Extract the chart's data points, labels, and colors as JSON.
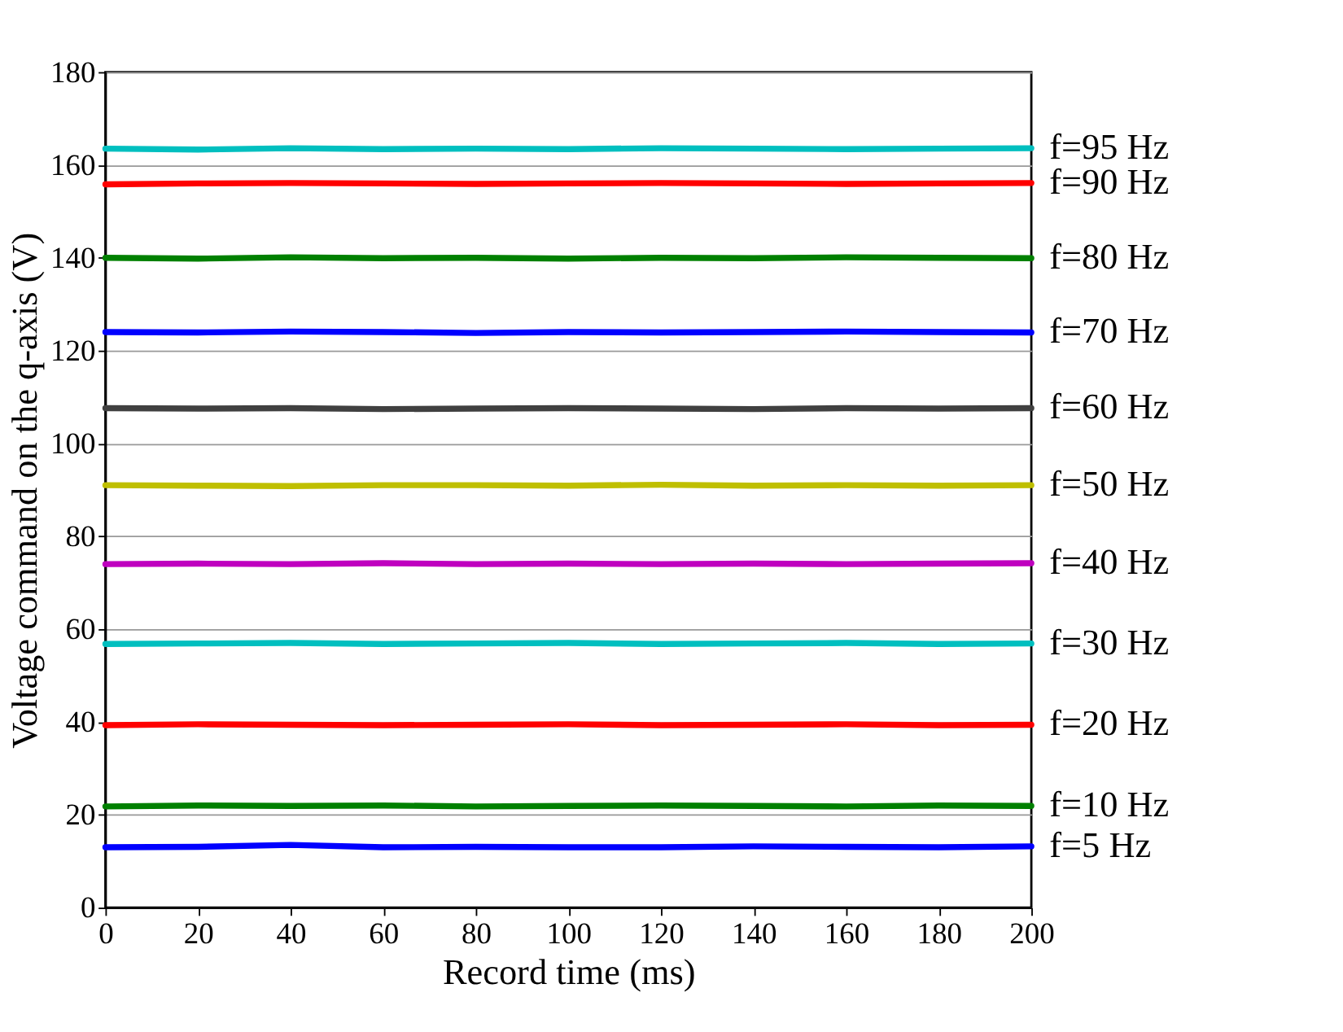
{
  "chart_data": {
    "type": "line",
    "xlabel": "Record time (ms)",
    "ylabel": "Voltage command on the q-axis (V)",
    "xlim": [
      0,
      200
    ],
    "ylim": [
      0,
      180
    ],
    "xticks": [
      0,
      20,
      40,
      60,
      80,
      100,
      120,
      140,
      160,
      180,
      200
    ],
    "yticks": [
      0,
      20,
      40,
      60,
      80,
      100,
      120,
      140,
      160,
      180
    ],
    "grid": "y",
    "legend": false,
    "marker": "none",
    "line_style": "solid",
    "x": [
      0,
      20,
      40,
      60,
      80,
      100,
      120,
      140,
      160,
      180,
      200
    ],
    "series": [
      {
        "name": "f=95 Hz",
        "color": "#00bfbf",
        "values": [
          163.5,
          163.3,
          163.6,
          163.4,
          163.5,
          163.4,
          163.6,
          163.5,
          163.4,
          163.5,
          163.6
        ]
      },
      {
        "name": "f=90 Hz",
        "color": "#ff0000",
        "values": [
          155.8,
          156.0,
          156.1,
          156.0,
          155.9,
          156.0,
          156.1,
          156.0,
          155.9,
          156.0,
          156.1
        ]
      },
      {
        "name": "f=80 Hz",
        "color": "#008000",
        "values": [
          140.0,
          139.8,
          140.1,
          139.9,
          140.0,
          139.8,
          140.0,
          139.9,
          140.1,
          140.0,
          139.9
        ]
      },
      {
        "name": "f=70 Hz",
        "color": "#0000ff",
        "values": [
          124.0,
          123.9,
          124.1,
          124.0,
          123.8,
          124.0,
          123.9,
          124.0,
          124.1,
          124.0,
          123.9
        ]
      },
      {
        "name": "f=60 Hz",
        "color": "#404040",
        "values": [
          107.6,
          107.5,
          107.6,
          107.4,
          107.5,
          107.6,
          107.5,
          107.4,
          107.6,
          107.5,
          107.6
        ]
      },
      {
        "name": "f=50 Hz",
        "color": "#bfbf00",
        "values": [
          91.0,
          90.9,
          90.8,
          91.0,
          91.0,
          90.9,
          91.1,
          90.9,
          91.0,
          90.9,
          91.0
        ]
      },
      {
        "name": "f=40 Hz",
        "color": "#bf00bf",
        "values": [
          74.0,
          74.1,
          74.0,
          74.2,
          74.0,
          74.1,
          74.0,
          74.1,
          74.0,
          74.1,
          74.2
        ]
      },
      {
        "name": "f=30 Hz",
        "color": "#00bfbf",
        "values": [
          56.8,
          56.9,
          57.0,
          56.8,
          56.9,
          57.0,
          56.8,
          56.9,
          57.0,
          56.8,
          56.9
        ]
      },
      {
        "name": "f=20 Hz",
        "color": "#ff0000",
        "values": [
          39.3,
          39.5,
          39.4,
          39.3,
          39.4,
          39.5,
          39.3,
          39.4,
          39.5,
          39.3,
          39.4
        ]
      },
      {
        "name": "f=10 Hz",
        "color": "#008000",
        "values": [
          21.8,
          22.0,
          21.9,
          22.0,
          21.8,
          21.9,
          22.0,
          21.9,
          21.8,
          22.0,
          21.9
        ]
      },
      {
        "name": "f=5 Hz",
        "color": "#0000ff",
        "values": [
          13.0,
          13.1,
          13.5,
          13.0,
          13.1,
          13.0,
          13.0,
          13.2,
          13.1,
          13.0,
          13.2
        ]
      }
    ]
  }
}
